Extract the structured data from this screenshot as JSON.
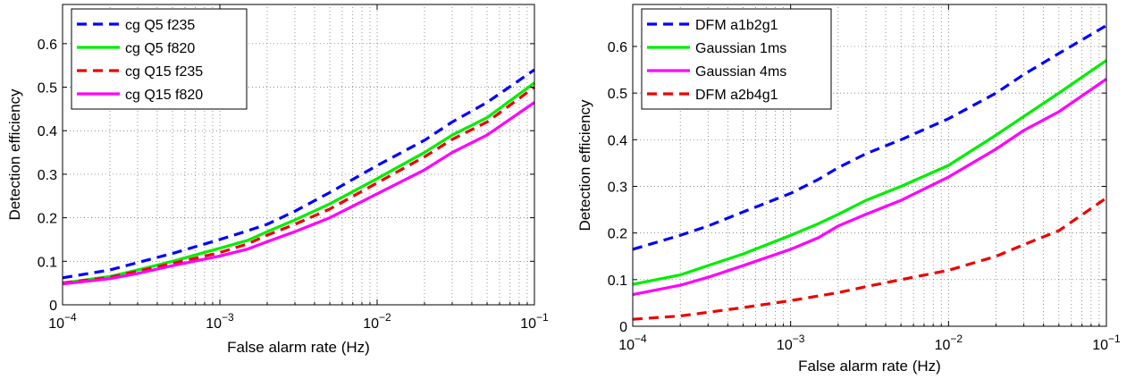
{
  "chart_data": [
    {
      "type": "line",
      "title": "",
      "xlabel": "False alarm rate (Hz)",
      "ylabel": "Detection efficiency",
      "xscale": "log",
      "xlim": [
        0.0001,
        0.1
      ],
      "ylim": [
        0,
        0.69
      ],
      "xticks": [
        0.0001,
        0.001,
        0.01,
        0.1
      ],
      "xtick_labels": [
        {
          "base": "10",
          "exp": "−4"
        },
        {
          "base": "10",
          "exp": "−3"
        },
        {
          "base": "10",
          "exp": "−2"
        },
        {
          "base": "10",
          "exp": "−1"
        }
      ],
      "yticks": [
        0,
        0.1,
        0.2,
        0.3,
        0.4,
        0.5,
        0.6
      ],
      "ytick_labels": [
        "0",
        "0.1",
        "0.2",
        "0.3",
        "0.4",
        "0.5",
        "0.6"
      ],
      "grid": true,
      "legend_position": "top-left",
      "series": [
        {
          "name": "cg Q5 f235",
          "color": "#0000ff",
          "dash": true,
          "x": [
            0.0001,
            0.0002,
            0.0003,
            0.0005,
            0.001,
            0.0015,
            0.002,
            0.003,
            0.005,
            0.01,
            0.02,
            0.03,
            0.05,
            0.1
          ],
          "y": [
            0.062,
            0.08,
            0.097,
            0.118,
            0.15,
            0.17,
            0.185,
            0.215,
            0.258,
            0.32,
            0.378,
            0.42,
            0.465,
            0.54
          ]
        },
        {
          "name": "cg Q5 f820",
          "color": "#00ee00",
          "dash": false,
          "x": [
            0.0001,
            0.0002,
            0.0003,
            0.0005,
            0.001,
            0.0015,
            0.002,
            0.003,
            0.005,
            0.01,
            0.02,
            0.03,
            0.05,
            0.1
          ],
          "y": [
            0.05,
            0.065,
            0.08,
            0.1,
            0.13,
            0.148,
            0.168,
            0.195,
            0.232,
            0.29,
            0.35,
            0.39,
            0.43,
            0.51
          ]
        },
        {
          "name": "cg Q15 f235",
          "color": "#ee0000",
          "dash": true,
          "x": [
            0.0001,
            0.0002,
            0.0003,
            0.0005,
            0.001,
            0.0015,
            0.002,
            0.003,
            0.005,
            0.01,
            0.02,
            0.03,
            0.05,
            0.1
          ],
          "y": [
            0.05,
            0.063,
            0.077,
            0.095,
            0.12,
            0.14,
            0.16,
            0.185,
            0.22,
            0.28,
            0.34,
            0.38,
            0.42,
            0.5
          ]
        },
        {
          "name": "cg Q15 f820",
          "color": "#ff00ff",
          "dash": false,
          "x": [
            0.0001,
            0.0002,
            0.0003,
            0.0005,
            0.001,
            0.0015,
            0.002,
            0.003,
            0.005,
            0.01,
            0.02,
            0.03,
            0.05,
            0.1
          ],
          "y": [
            0.048,
            0.06,
            0.072,
            0.09,
            0.112,
            0.128,
            0.145,
            0.168,
            0.2,
            0.255,
            0.31,
            0.35,
            0.39,
            0.465
          ]
        }
      ]
    },
    {
      "type": "line",
      "title": "",
      "xlabel": "False alarm rate (Hz)",
      "ylabel": "Detection efficiency",
      "xscale": "log",
      "xlim": [
        0.0001,
        0.1
      ],
      "ylim": [
        0,
        0.69
      ],
      "xticks": [
        0.0001,
        0.001,
        0.01,
        0.1
      ],
      "xtick_labels": [
        {
          "base": "10",
          "exp": "−4"
        },
        {
          "base": "10",
          "exp": "−3"
        },
        {
          "base": "10",
          "exp": "−2"
        },
        {
          "base": "10",
          "exp": "−1"
        }
      ],
      "yticks": [
        0,
        0.1,
        0.2,
        0.3,
        0.4,
        0.5,
        0.6
      ],
      "ytick_labels": [
        "0",
        "0.1",
        "0.2",
        "0.3",
        "0.4",
        "0.5",
        "0.6"
      ],
      "grid": true,
      "legend_position": "top-left",
      "series": [
        {
          "name": "DFM a1b2g1",
          "color": "#0000ff",
          "dash": true,
          "x": [
            0.0001,
            0.0002,
            0.0003,
            0.0005,
            0.001,
            0.0015,
            0.002,
            0.003,
            0.005,
            0.01,
            0.02,
            0.03,
            0.05,
            0.1
          ],
          "y": [
            0.165,
            0.195,
            0.215,
            0.245,
            0.285,
            0.315,
            0.34,
            0.37,
            0.4,
            0.445,
            0.5,
            0.54,
            0.585,
            0.645
          ]
        },
        {
          "name": "Gaussian 1ms",
          "color": "#00ee00",
          "dash": false,
          "x": [
            0.0001,
            0.0002,
            0.0003,
            0.0005,
            0.001,
            0.0015,
            0.002,
            0.003,
            0.005,
            0.01,
            0.02,
            0.03,
            0.05,
            0.1
          ],
          "y": [
            0.09,
            0.11,
            0.13,
            0.155,
            0.195,
            0.22,
            0.24,
            0.27,
            0.3,
            0.345,
            0.41,
            0.45,
            0.5,
            0.57
          ]
        },
        {
          "name": "Gaussian 4ms",
          "color": "#ff00ff",
          "dash": false,
          "x": [
            0.0001,
            0.0002,
            0.0003,
            0.0005,
            0.001,
            0.0015,
            0.002,
            0.003,
            0.005,
            0.01,
            0.02,
            0.03,
            0.05,
            0.1
          ],
          "y": [
            0.068,
            0.088,
            0.105,
            0.13,
            0.165,
            0.19,
            0.215,
            0.24,
            0.27,
            0.32,
            0.38,
            0.42,
            0.46,
            0.53
          ]
        },
        {
          "name": "DFM a2b4g1",
          "color": "#ee0000",
          "dash": true,
          "x": [
            0.0001,
            0.0002,
            0.0003,
            0.0005,
            0.001,
            0.0015,
            0.002,
            0.003,
            0.005,
            0.01,
            0.02,
            0.03,
            0.05,
            0.1
          ],
          "y": [
            0.015,
            0.022,
            0.03,
            0.04,
            0.055,
            0.065,
            0.072,
            0.085,
            0.1,
            0.12,
            0.15,
            0.175,
            0.205,
            0.275
          ]
        }
      ]
    }
  ]
}
